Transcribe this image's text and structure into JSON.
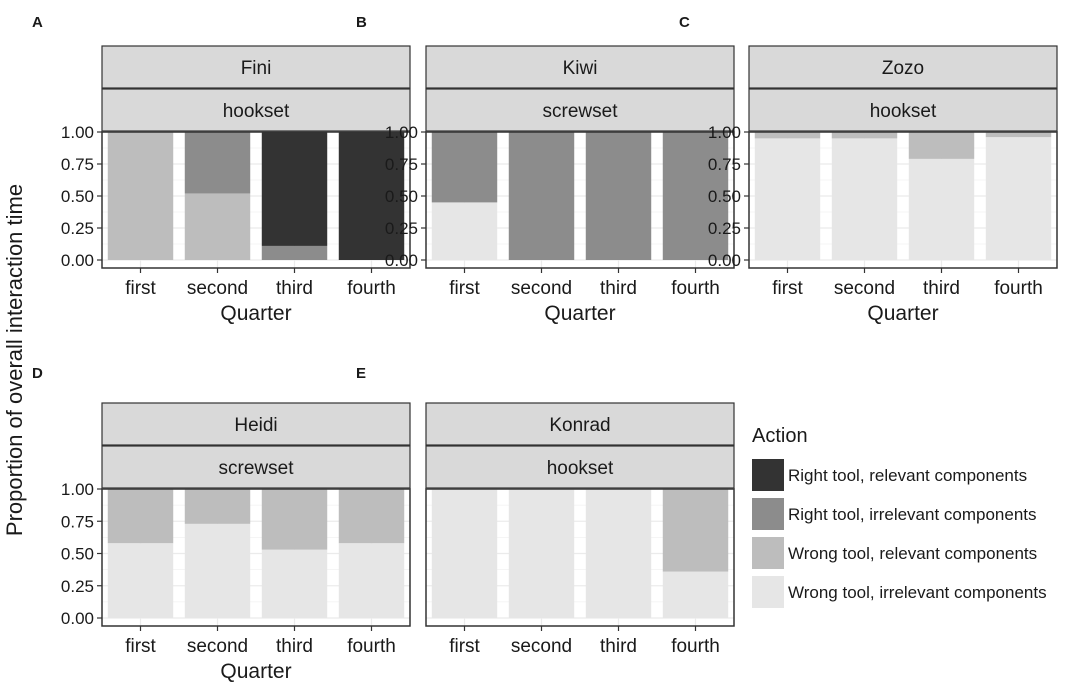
{
  "ylabel": "Proportion of overall interaction time",
  "legend": {
    "title": "Action",
    "items": [
      {
        "label": "Right tool, relevant components",
        "color": "#333333"
      },
      {
        "label": "Right tool, irrelevant components",
        "color": "#8c8c8c"
      },
      {
        "label": "Wrong tool, relevant components",
        "color": "#bdbdbd"
      },
      {
        "label": "Wrong tool, irrelevant components",
        "color": "#e6e6e6"
      }
    ]
  },
  "chart_data": [
    {
      "type": "bar",
      "stacked": true,
      "panel": "A",
      "strip_top": "Fini",
      "strip_bottom": "hookset",
      "xlabel": "Quarter",
      "categories": [
        "first",
        "second",
        "third",
        "fourth"
      ],
      "ylim": [
        0,
        1
      ],
      "yticks": [
        "0.00",
        "0.25",
        "0.50",
        "0.75",
        "1.00"
      ],
      "series": [
        {
          "name": "Wrong tool, irrelevant components",
          "values": [
            0,
            0,
            0,
            0
          ]
        },
        {
          "name": "Wrong tool, relevant components",
          "values": [
            1.0,
            0.52,
            0,
            0
          ]
        },
        {
          "name": "Right tool, irrelevant components",
          "values": [
            0,
            0.48,
            0.11,
            0
          ]
        },
        {
          "name": "Right tool, relevant components",
          "values": [
            0,
            0,
            0.89,
            1.0
          ]
        }
      ]
    },
    {
      "type": "bar",
      "stacked": true,
      "panel": "B",
      "strip_top": "Kiwi",
      "strip_bottom": "screwset",
      "xlabel": "Quarter",
      "categories": [
        "first",
        "second",
        "third",
        "fourth"
      ],
      "ylim": [
        0,
        1
      ],
      "yticks": [
        "0.00",
        "0.25",
        "0.50",
        "0.75",
        "1.00"
      ],
      "series": [
        {
          "name": "Wrong tool, irrelevant components",
          "values": [
            0.45,
            0,
            0,
            0
          ]
        },
        {
          "name": "Wrong tool, relevant components",
          "values": [
            0,
            0,
            0,
            0
          ]
        },
        {
          "name": "Right tool, irrelevant components",
          "values": [
            0.55,
            1.0,
            1.0,
            1.0
          ]
        },
        {
          "name": "Right tool, relevant components",
          "values": [
            0,
            0,
            0,
            0
          ]
        }
      ]
    },
    {
      "type": "bar",
      "stacked": true,
      "panel": "C",
      "strip_top": "Zozo",
      "strip_bottom": "hookset",
      "xlabel": "Quarter",
      "categories": [
        "first",
        "second",
        "third",
        "fourth"
      ],
      "ylim": [
        0,
        1
      ],
      "yticks": [
        "0.00",
        "0.25",
        "0.50",
        "0.75",
        "1.00"
      ],
      "series": [
        {
          "name": "Wrong tool, irrelevant components",
          "values": [
            0.95,
            0.95,
            0.79,
            0.96
          ]
        },
        {
          "name": "Wrong tool, relevant components",
          "values": [
            0.05,
            0.05,
            0.21,
            0.04
          ]
        },
        {
          "name": "Right tool, irrelevant components",
          "values": [
            0,
            0,
            0,
            0
          ]
        },
        {
          "name": "Right tool, relevant components",
          "values": [
            0,
            0,
            0,
            0
          ]
        }
      ]
    },
    {
      "type": "bar",
      "stacked": true,
      "panel": "D",
      "strip_top": "Heidi",
      "strip_bottom": "screwset",
      "xlabel": "Quarter",
      "categories": [
        "first",
        "second",
        "third",
        "fourth"
      ],
      "ylim": [
        0,
        1
      ],
      "yticks": [
        "0.00",
        "0.25",
        "0.50",
        "0.75",
        "1.00"
      ],
      "series": [
        {
          "name": "Wrong tool, irrelevant components",
          "values": [
            0.58,
            0.73,
            0.53,
            0.58
          ]
        },
        {
          "name": "Wrong tool, relevant components",
          "values": [
            0.42,
            0.27,
            0.47,
            0.42
          ]
        },
        {
          "name": "Right tool, irrelevant components",
          "values": [
            0,
            0,
            0,
            0
          ]
        },
        {
          "name": "Right tool, relevant components",
          "values": [
            0,
            0,
            0,
            0
          ]
        }
      ]
    },
    {
      "type": "bar",
      "stacked": true,
      "panel": "E",
      "strip_top": "Konrad",
      "strip_bottom": "hookset",
      "xlabel": "",
      "categories": [
        "first",
        "second",
        "third",
        "fourth"
      ],
      "ylim": [
        0,
        1
      ],
      "yticks": [],
      "series": [
        {
          "name": "Wrong tool, irrelevant components",
          "values": [
            1.0,
            1.0,
            1.0,
            0.36
          ]
        },
        {
          "name": "Wrong tool, relevant components",
          "values": [
            0,
            0,
            0,
            0.64
          ]
        },
        {
          "name": "Right tool, irrelevant components",
          "values": [
            0,
            0,
            0,
            0
          ]
        },
        {
          "name": "Right tool, relevant components",
          "values": [
            0,
            0,
            0,
            0
          ]
        }
      ]
    }
  ]
}
